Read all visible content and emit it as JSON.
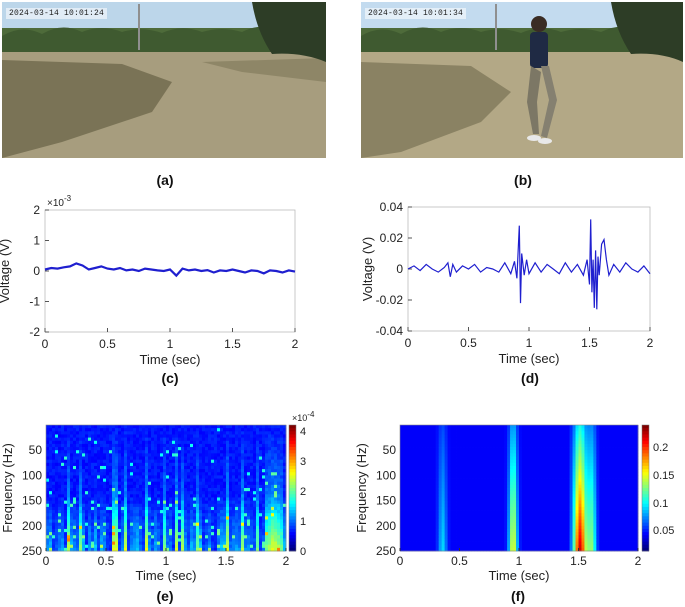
{
  "panels": {
    "a": {
      "label": "(a)",
      "timestamp": "2024-03-14 10:01:24"
    },
    "b": {
      "label": "(b)",
      "timestamp": "2024-03-14 10:01:34"
    },
    "c": {
      "label": "(c)"
    },
    "d": {
      "label": "(d)"
    },
    "e": {
      "label": "(e)"
    },
    "f": {
      "label": "(f)"
    }
  },
  "chart_data": [
    {
      "id": "c",
      "type": "line",
      "xlabel": "Time (sec)",
      "ylabel": "Voltage (V)",
      "scale_note": "×10",
      "scale_exp": "-3",
      "xlim": [
        0,
        2
      ],
      "ylim": [
        -2,
        2
      ],
      "xticks": [
        "0",
        "0.5",
        "1",
        "1.5",
        "2"
      ],
      "yticks": [
        "2",
        "1",
        "0",
        "-1",
        "-2"
      ],
      "color": "#1f1fcf",
      "series": [
        {
          "x": [
            0,
            0.05,
            0.1,
            0.15,
            0.2,
            0.25,
            0.3,
            0.35,
            0.4,
            0.45,
            0.5,
            0.55,
            0.6,
            0.65,
            0.7,
            0.75,
            0.8,
            0.85,
            0.9,
            0.95,
            1.0,
            1.05,
            1.1,
            1.15,
            1.2,
            1.25,
            1.3,
            1.35,
            1.4,
            1.45,
            1.5,
            1.55,
            1.6,
            1.65,
            1.7,
            1.75,
            1.8,
            1.85,
            1.9,
            1.95,
            2.0
          ],
          "y": [
            0.05,
            0.1,
            0.08,
            0.12,
            0.15,
            0.25,
            0.18,
            0.05,
            0.1,
            0.15,
            0.08,
            0.05,
            0.1,
            0.02,
            0.05,
            0.0,
            0.08,
            0.05,
            0.02,
            0.0,
            0.05,
            -0.15,
            0.08,
            0.02,
            0.05,
            0.0,
            0.03,
            -0.05,
            0.02,
            0.0,
            0.05,
            0.0,
            -0.05,
            0.02,
            0.0,
            -0.08,
            0.02,
            0.0,
            -0.05,
            0.02,
            -0.02
          ]
        }
      ]
    },
    {
      "id": "d",
      "type": "line",
      "xlabel": "Time (sec)",
      "ylabel": "Voltage (V)",
      "xlim": [
        0,
        2
      ],
      "ylim": [
        -0.04,
        0.04
      ],
      "xticks": [
        "0",
        "0.5",
        "1",
        "1.5",
        "2"
      ],
      "yticks": [
        "0.04",
        "0.02",
        "0",
        "-0.02",
        "-0.04"
      ],
      "color": "#1f1fcf",
      "series": [
        {
          "x": [
            0,
            0.05,
            0.1,
            0.15,
            0.2,
            0.25,
            0.3,
            0.33,
            0.35,
            0.37,
            0.4,
            0.45,
            0.5,
            0.55,
            0.6,
            0.65,
            0.7,
            0.75,
            0.8,
            0.85,
            0.88,
            0.9,
            0.92,
            0.93,
            0.94,
            0.96,
            0.98,
            1.0,
            1.05,
            1.1,
            1.15,
            1.2,
            1.25,
            1.3,
            1.35,
            1.4,
            1.45,
            1.48,
            1.5,
            1.51,
            1.52,
            1.53,
            1.54,
            1.55,
            1.56,
            1.57,
            1.58,
            1.6,
            1.62,
            1.64,
            1.66,
            1.7,
            1.75,
            1.8,
            1.85,
            1.9,
            1.95,
            2.0
          ],
          "y": [
            0.0,
            0.002,
            -0.001,
            0.003,
            0.0,
            -0.002,
            0.001,
            0.004,
            -0.005,
            0.003,
            -0.002,
            0.002,
            0.0,
            0.003,
            -0.002,
            0.001,
            0.0,
            -0.002,
            0.004,
            -0.003,
            0.005,
            -0.006,
            0.028,
            -0.022,
            0.01,
            -0.004,
            0.006,
            -0.003,
            0.004,
            -0.002,
            0.003,
            0.0,
            -0.003,
            0.004,
            -0.002,
            0.003,
            -0.004,
            0.006,
            -0.01,
            0.032,
            -0.015,
            0.006,
            -0.025,
            0.012,
            -0.026,
            0.008,
            -0.004,
            0.016,
            0.019,
            0.006,
            -0.004,
            0.003,
            -0.002,
            0.004,
            0.0,
            -0.002,
            0.002,
            -0.003
          ]
        }
      ]
    },
    {
      "id": "e",
      "type": "heatmap",
      "xlabel": "Time (sec)",
      "ylabel": "Frequency (Hz)",
      "xlim": [
        0,
        2
      ],
      "ylim": [
        0,
        250
      ],
      "xticks": [
        "0",
        "0.5",
        "1",
        "1.5",
        "2"
      ],
      "yticks": [
        "50",
        "100",
        "150",
        "200",
        "250"
      ],
      "colorbar": {
        "scale_note": "×10",
        "scale_exp": "-4",
        "ticks": [
          "4",
          "3",
          "2",
          "1",
          "0"
        ]
      },
      "description_hint": "broadband noise, vertical streaks across full time span"
    },
    {
      "id": "f",
      "type": "heatmap",
      "xlabel": "Time (sec)",
      "ylabel": "Frequency (Hz)",
      "xlim": [
        0,
        2
      ],
      "ylim": [
        0,
        250
      ],
      "xticks": [
        "0",
        "0.5",
        "1",
        "1.5",
        "2"
      ],
      "yticks": [
        "50",
        "100",
        "150",
        "200",
        "250"
      ],
      "colorbar": {
        "ticks": [
          "0.2",
          "0.15",
          "0.1",
          "0.05"
        ]
      },
      "bursts_sec": [
        0.35,
        0.95,
        1.52,
        1.62
      ]
    }
  ]
}
